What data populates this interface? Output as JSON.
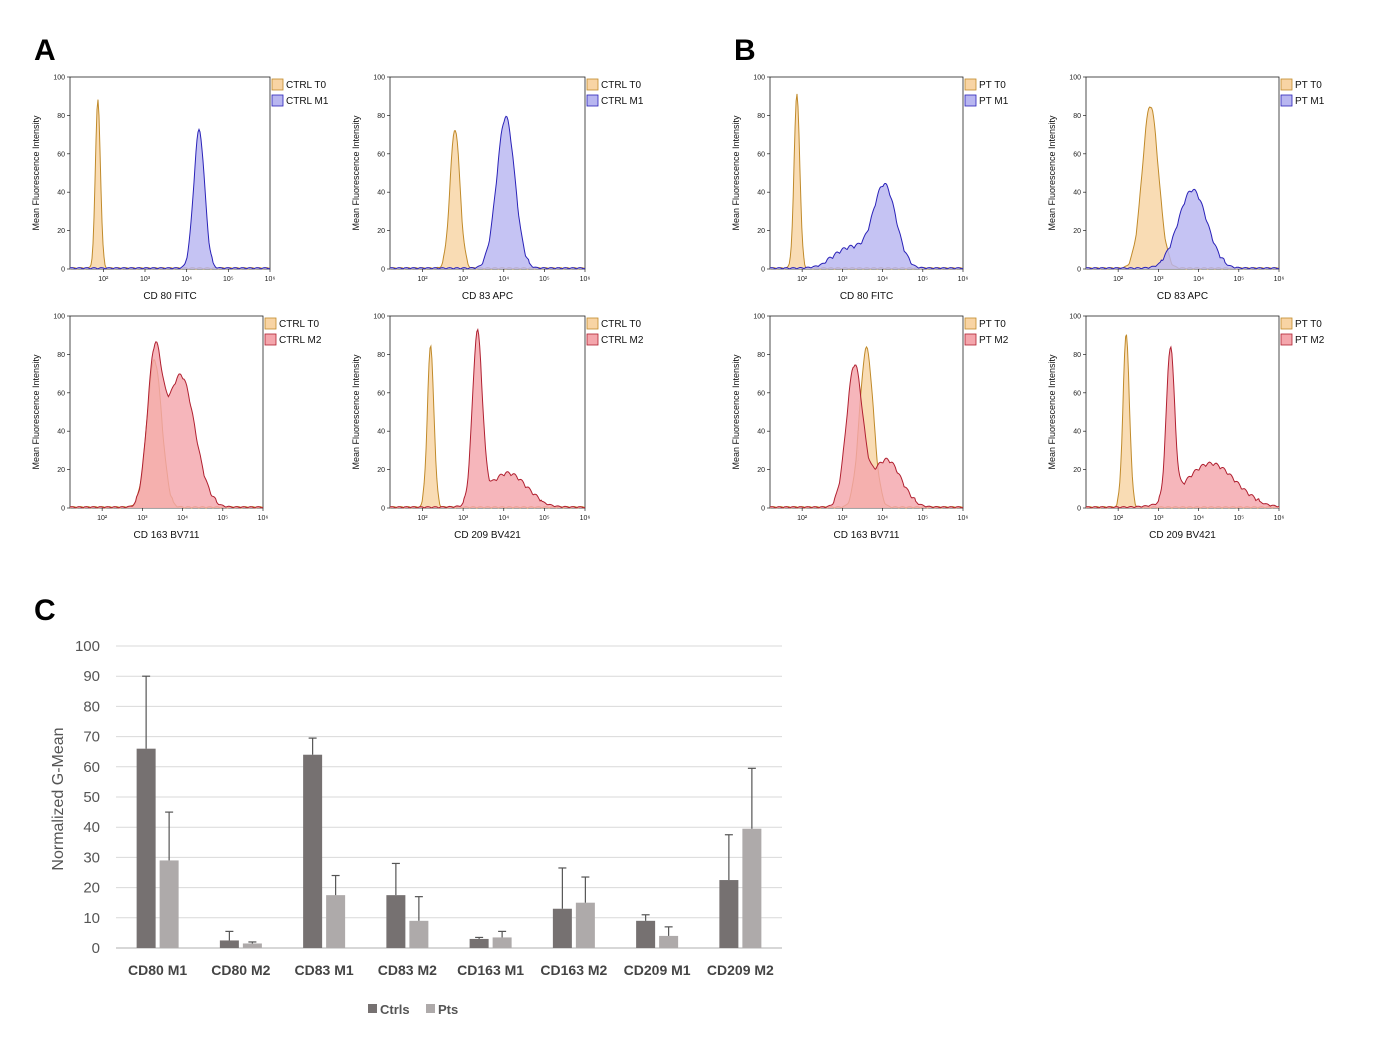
{
  "panel_labels": {
    "a": "A",
    "b": "B",
    "c": "C"
  },
  "colors": {
    "t0_fill": "#f8d4a4",
    "t0_line": "#c08a2a",
    "m1_fill": "#b8b6f0",
    "m1_line": "#2a22b8",
    "m2_fill": "#f4a6ac",
    "m2_line": "#b02030",
    "ctrls": "#767171",
    "pts": "#aeaaaa",
    "grid": "#d9d9d9"
  },
  "histogram_common": {
    "ylabel": "Mean Fluorescence Intensity",
    "y_ticks": [
      "0",
      "20",
      "40",
      "60",
      "80",
      "100"
    ],
    "x_ticks": [
      "10²",
      "10³",
      "10⁴",
      "10⁵",
      "10⁶"
    ]
  },
  "chart_data": [
    {
      "id": "A1",
      "type": "area",
      "xlabel": "CD 80 FITC",
      "xlim": [
        1.2,
        6
      ],
      "ylim": [
        0,
        100
      ],
      "series": [
        {
          "name": "CTRL T0",
          "color": "t0",
          "peaks": [
            {
              "mu": 1.87,
              "sigma": 0.06,
              "h": 87
            }
          ]
        },
        {
          "name": "CTRL M1",
          "color": "m1",
          "peaks": [
            {
              "mu": 4.3,
              "sigma": 0.13,
              "h": 71
            }
          ]
        }
      ]
    },
    {
      "id": "A2",
      "type": "area",
      "xlabel": "CD 83 APC",
      "xlim": [
        1.2,
        6
      ],
      "ylim": [
        0,
        100
      ],
      "series": [
        {
          "name": "CTRL T0",
          "color": "t0",
          "peaks": [
            {
              "mu": 2.8,
              "sigma": 0.12,
              "h": 72
            }
          ]
        },
        {
          "name": "CTRL M1",
          "color": "m1",
          "peaks": [
            {
              "mu": 4.05,
              "sigma": 0.22,
              "h": 78
            }
          ]
        }
      ]
    },
    {
      "id": "A3",
      "type": "area",
      "xlabel": "CD 163 BV711",
      "xlim": [
        1.2,
        6
      ],
      "ylim": [
        0,
        100
      ],
      "series": [
        {
          "name": "CTRL T0",
          "color": "t0",
          "peaks": [
            {
              "mu": 3.3,
              "sigma": 0.18,
              "h": 76
            }
          ]
        },
        {
          "name": "CTRL M2",
          "color": "m2",
          "peaks": [
            {
              "mu": 3.3,
              "sigma": 0.18,
              "h": 72
            },
            {
              "mu": 3.95,
              "sigma": 0.35,
              "h": 68
            }
          ]
        }
      ]
    },
    {
      "id": "A4",
      "type": "area",
      "xlabel": "CD 209 BV421",
      "xlim": [
        1.2,
        6
      ],
      "ylim": [
        0,
        100
      ],
      "series": [
        {
          "name": "CTRL T0",
          "color": "t0",
          "peaks": [
            {
              "mu": 2.2,
              "sigma": 0.08,
              "h": 83
            }
          ]
        },
        {
          "name": "CTRL M2",
          "color": "m2",
          "peaks": [
            {
              "mu": 3.35,
              "sigma": 0.12,
              "h": 87
            },
            {
              "mu": 4.1,
              "sigma": 0.45,
              "h": 17
            }
          ]
        }
      ]
    },
    {
      "id": "B1",
      "type": "area",
      "xlabel": "CD 80 FITC",
      "xlim": [
        1.2,
        6
      ],
      "ylim": [
        0,
        100
      ],
      "series": [
        {
          "name": "PT T0",
          "color": "t0",
          "peaks": [
            {
              "mu": 1.87,
              "sigma": 0.07,
              "h": 90
            }
          ]
        },
        {
          "name": "PT M1",
          "color": "m1",
          "peaks": [
            {
              "mu": 4.05,
              "sigma": 0.28,
              "h": 42
            },
            {
              "mu": 3.2,
              "sigma": 0.4,
              "h": 10
            }
          ]
        }
      ]
    },
    {
      "id": "B2",
      "type": "area",
      "xlabel": "CD 83 APC",
      "xlim": [
        1.2,
        6
      ],
      "ylim": [
        0,
        100
      ],
      "series": [
        {
          "name": "PT T0",
          "color": "t0",
          "peaks": [
            {
              "mu": 2.8,
              "sigma": 0.2,
              "h": 84
            }
          ]
        },
        {
          "name": "PT M1",
          "color": "m1",
          "peaks": [
            {
              "mu": 3.85,
              "sigma": 0.35,
              "h": 40
            }
          ]
        }
      ]
    },
    {
      "id": "B3",
      "type": "area",
      "xlabel": "CD 163 BV711",
      "xlim": [
        1.2,
        6
      ],
      "ylim": [
        0,
        100
      ],
      "series": [
        {
          "name": "PT T0",
          "color": "t0",
          "peaks": [
            {
              "mu": 3.6,
              "sigma": 0.17,
              "h": 82
            }
          ]
        },
        {
          "name": "PT M2",
          "color": "m2",
          "peaks": [
            {
              "mu": 3.3,
              "sigma": 0.2,
              "h": 72
            },
            {
              "mu": 4.1,
              "sigma": 0.35,
              "h": 24
            }
          ]
        }
      ]
    },
    {
      "id": "B4",
      "type": "area",
      "xlabel": "CD 209 BV421",
      "xlim": [
        1.2,
        6
      ],
      "ylim": [
        0,
        100
      ],
      "series": [
        {
          "name": "PT T0",
          "color": "t0",
          "peaks": [
            {
              "mu": 2.2,
              "sigma": 0.08,
              "h": 89
            }
          ]
        },
        {
          "name": "PT M2",
          "color": "m2",
          "peaks": [
            {
              "mu": 3.3,
              "sigma": 0.1,
              "h": 78
            },
            {
              "mu": 4.3,
              "sigma": 0.6,
              "h": 22
            }
          ]
        }
      ]
    },
    {
      "id": "C",
      "type": "bar",
      "title": "",
      "categories": [
        "CD80 M1",
        "CD80 M2",
        "CD83 M1",
        "CD83 M2",
        "CD163 M1",
        "CD163 M2",
        "CD209 M1",
        "CD209 M2"
      ],
      "series": [
        {
          "name": "Ctrls",
          "values": [
            66,
            2.5,
            64,
            17.5,
            3,
            13,
            9,
            22.5
          ],
          "errors": [
            24,
            3,
            5.5,
            10.5,
            0.5,
            13.5,
            2,
            15
          ]
        },
        {
          "name": "Pts",
          "values": [
            29,
            1.5,
            17.5,
            9,
            3.5,
            15,
            4,
            39.5
          ],
          "errors": [
            16,
            0.5,
            6.5,
            8,
            2,
            8.5,
            3,
            20
          ]
        }
      ],
      "xlabel": "",
      "ylabel": "Normalized G-Mean",
      "ylim": [
        0,
        100
      ],
      "y_ticks": [
        "0",
        "10",
        "20",
        "30",
        "40",
        "50",
        "60",
        "70",
        "80",
        "90",
        "100"
      ],
      "legend": "bottom"
    }
  ]
}
